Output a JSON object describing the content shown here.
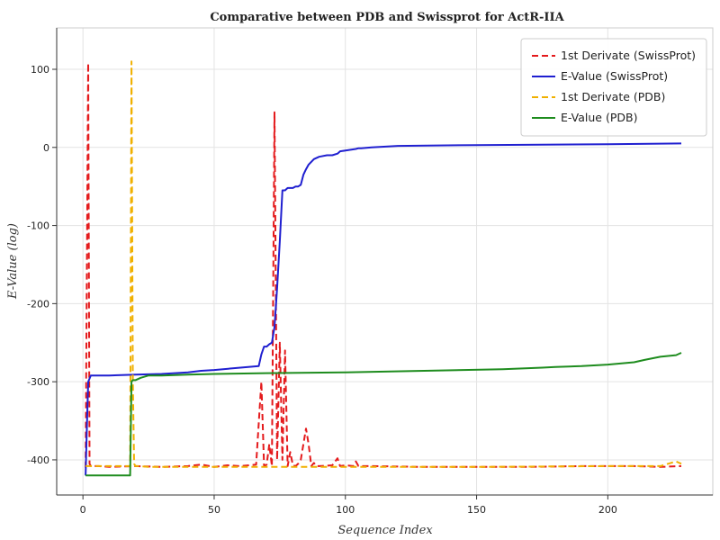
{
  "chart_data": {
    "type": "line",
    "title": "Comparative between PDB and Swissprot for ActR-IIA",
    "xlabel": "Sequence Index",
    "ylabel": "E-Value (log)",
    "xlim": [
      -10,
      240
    ],
    "ylim": [
      -445,
      153
    ],
    "xticks": [
      0,
      50,
      100,
      150,
      200
    ],
    "yticks": [
      100,
      0,
      -100,
      -200,
      -300,
      -400
    ],
    "ytick_labels": [
      "100",
      "0",
      "-100",
      "-200",
      "-300",
      "-400"
    ],
    "grid": true,
    "legend_position": "top-right",
    "series": [
      {
        "name": "1st Derivate (SwissProt)",
        "color": "#e41a1c",
        "style": "dashed",
        "x": [
          1,
          2,
          2.5,
          3,
          4,
          6,
          10,
          20,
          30,
          40,
          45,
          50,
          55,
          60,
          66,
          68,
          69,
          70,
          71,
          72,
          73,
          74,
          75,
          76,
          77,
          78,
          79,
          80,
          81,
          82,
          83,
          84,
          85,
          86,
          87,
          88,
          89,
          90,
          95,
          97,
          98,
          100,
          103,
          104,
          105,
          110,
          130,
          150,
          170,
          190,
          210,
          220,
          228
        ],
        "y": [
          -410,
          108,
          -405,
          -408,
          -408,
          -408,
          -409,
          -408,
          -409,
          -408,
          -406,
          -409,
          -407,
          -408,
          -406,
          -300,
          -408,
          -406,
          -380,
          -408,
          45,
          -400,
          -250,
          -400,
          -260,
          -408,
          -390,
          -407,
          -408,
          -405,
          -400,
          -380,
          -360,
          -380,
          -408,
          -404,
          -408,
          -408,
          -407,
          -398,
          -408,
          -407,
          -408,
          -402,
          -408,
          -408,
          -409,
          -409,
          -409,
          -408,
          -408,
          -409,
          -408
        ]
      },
      {
        "name": "E-Value (SwissProt)",
        "color": "#1f1fd0",
        "style": "solid",
        "x": [
          1,
          1.5,
          2,
          3,
          10,
          20,
          30,
          40,
          45,
          50,
          60,
          67,
          68,
          69,
          70,
          71,
          72,
          73,
          74,
          75,
          76,
          77,
          78,
          80,
          81,
          82,
          83,
          84,
          85,
          86,
          88,
          90,
          93,
          95,
          97,
          98,
          100,
          102,
          104,
          105,
          106,
          110,
          120,
          150,
          200,
          228
        ],
        "y": [
          -420,
          -360,
          -300,
          -292,
          -292,
          -291,
          -290,
          -288,
          -286,
          -285,
          -282,
          -280,
          -265,
          -255,
          -255,
          -252,
          -250,
          -230,
          -180,
          -120,
          -55,
          -55,
          -52,
          -52,
          -50,
          -50,
          -48,
          -35,
          -28,
          -22,
          -15,
          -12,
          -10,
          -10,
          -8,
          -5,
          -4,
          -3,
          -2,
          -1,
          -1,
          0,
          2,
          3,
          4,
          5
        ]
      },
      {
        "name": "1st Derivate (PDB)",
        "color": "#f0b000",
        "style": "dashed",
        "x": [
          1,
          10,
          18,
          18.5,
          19,
          19.5,
          20,
          21,
          25,
          40,
          60,
          80,
          100,
          150,
          200,
          220,
          226,
          228
        ],
        "y": [
          -408,
          -408,
          -408,
          110,
          -300,
          -405,
          -408,
          -408,
          -409,
          -409,
          -409,
          -409,
          -409,
          -409,
          -408,
          -408,
          -402,
          -405
        ]
      },
      {
        "name": "E-Value (PDB)",
        "color": "#1e8c1e",
        "style": "solid",
        "x": [
          1,
          10,
          18,
          18.5,
          19,
          20,
          22,
          25,
          30,
          40,
          50,
          70,
          100,
          130,
          160,
          175,
          180,
          190,
          200,
          210,
          214,
          220,
          226,
          228
        ],
        "y": [
          -420,
          -420,
          -420,
          -300,
          -298,
          -298,
          -295,
          -292,
          -292,
          -291,
          -290,
          -289,
          -288,
          -286,
          -284,
          -282,
          -281,
          -280,
          -278,
          -275,
          -272,
          -268,
          -266,
          -263
        ]
      }
    ]
  }
}
